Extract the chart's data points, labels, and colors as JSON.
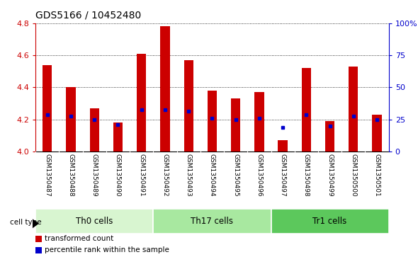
{
  "title": "GDS5166 / 10452480",
  "samples": [
    "GSM1350487",
    "GSM1350488",
    "GSM1350489",
    "GSM1350490",
    "GSM1350491",
    "GSM1350492",
    "GSM1350493",
    "GSM1350494",
    "GSM1350495",
    "GSM1350496",
    "GSM1350497",
    "GSM1350498",
    "GSM1350499",
    "GSM1350500",
    "GSM1350501"
  ],
  "bar_values": [
    4.54,
    4.4,
    4.27,
    4.18,
    4.61,
    4.78,
    4.57,
    4.38,
    4.33,
    4.37,
    4.07,
    4.52,
    4.19,
    4.53,
    4.23
  ],
  "percentile_values": [
    4.23,
    4.22,
    4.2,
    4.17,
    4.26,
    4.26,
    4.25,
    4.21,
    4.2,
    4.21,
    4.15,
    4.23,
    4.16,
    4.22,
    4.2
  ],
  "cell_groups": [
    {
      "label": "Th0 cells",
      "start": 0,
      "end": 5,
      "color": "#d8f5d0"
    },
    {
      "label": "Th17 cells",
      "start": 5,
      "end": 10,
      "color": "#a8e8a0"
    },
    {
      "label": "Tr1 cells",
      "start": 10,
      "end": 15,
      "color": "#5cc85c"
    }
  ],
  "bar_color": "#cc0000",
  "dot_color": "#0000cc",
  "ylim": [
    4.0,
    4.8
  ],
  "yticks": [
    4.0,
    4.2,
    4.4,
    4.6,
    4.8
  ],
  "right_ytick_vals": [
    0,
    25,
    50,
    75,
    100
  ],
  "right_ytick_labels": [
    "0",
    "25",
    "50",
    "75",
    "100%"
  ],
  "bar_color_left": "#cc0000",
  "bar_color_right": "#0000cc",
  "bar_width": 0.4,
  "background_color": "#ffffff",
  "plot_bg_color": "#ffffff",
  "sample_area_color": "#d8d8d8",
  "legend_items": [
    {
      "color": "#cc0000",
      "label": "transformed count"
    },
    {
      "color": "#0000cc",
      "label": "percentile rank within the sample"
    }
  ]
}
